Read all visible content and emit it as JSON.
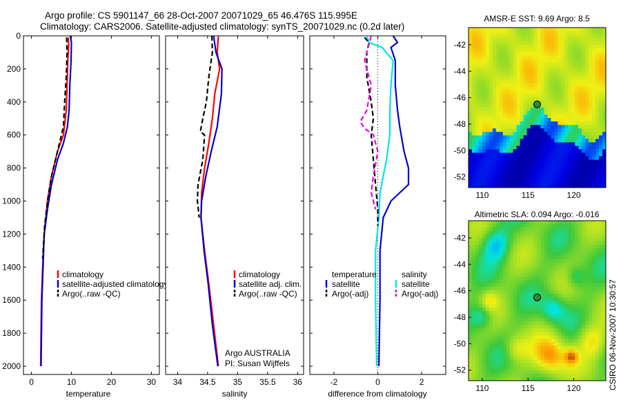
{
  "header": {
    "line1": "Argo profile: CS 5901147_66 28-Oct-2007 20071029_65 46.476S 115.995E",
    "line2": "Climatology: CARS2006. Satellite-adjusted climatology: synTS_20071029.nc (0.2d later)"
  },
  "footer_stamp": "CSIRO 06-Nov-2007 10:30:57",
  "colors": {
    "red": "#ff0000",
    "blue": "#0000cc",
    "black": "#000000",
    "cyan": "#00e5e5",
    "magenta": "#e600e6"
  },
  "chart_data": [
    {
      "type": "line",
      "xlabel": "temperature",
      "ylim": [
        2050,
        0
      ],
      "xlim": [
        -2,
        32
      ],
      "xticks": [
        0,
        10,
        20,
        30
      ],
      "yticks": [
        0,
        200,
        400,
        600,
        800,
        1000,
        1200,
        1400,
        1600,
        1800,
        2000
      ],
      "legend": [
        "climatology",
        "satellite-adjusted climatology",
        "Argo(..raw -QC)"
      ],
      "legend_placement": "lower-left",
      "series": [
        {
          "name": "climatology",
          "color": "red",
          "dash": false,
          "points": [
            [
              9.2,
              10
            ],
            [
              9.3,
              50
            ],
            [
              9.1,
              150
            ],
            [
              8.9,
              300
            ],
            [
              8.7,
              450
            ],
            [
              8.0,
              600
            ],
            [
              6.5,
              700
            ],
            [
              5.0,
              850
            ],
            [
              4.0,
              1000
            ],
            [
              3.2,
              1200
            ],
            [
              2.8,
              1400
            ],
            [
              2.5,
              1600
            ],
            [
              2.4,
              1800
            ],
            [
              2.3,
              2000
            ]
          ]
        },
        {
          "name": "satellite-adjusted climatology",
          "color": "blue",
          "dash": false,
          "points": [
            [
              9.7,
              0
            ],
            [
              10.0,
              40
            ],
            [
              9.9,
              150
            ],
            [
              9.6,
              300
            ],
            [
              9.4,
              450
            ],
            [
              9.0,
              550
            ],
            [
              8.0,
              650
            ],
            [
              6.5,
              750
            ],
            [
              5.0,
              900
            ],
            [
              4.0,
              1050
            ],
            [
              3.2,
              1200
            ],
            [
              2.9,
              1400
            ],
            [
              2.6,
              1600
            ],
            [
              2.5,
              1800
            ],
            [
              2.4,
              2000
            ]
          ]
        },
        {
          "name": "Argo(..raw -QC)",
          "color": "black",
          "dash": true,
          "points": [
            [
              8.8,
              10
            ],
            [
              8.9,
              100
            ],
            [
              8.7,
              250
            ],
            [
              8.3,
              400
            ],
            [
              8.0,
              550
            ],
            [
              6.5,
              700
            ],
            [
              5.0,
              850
            ],
            [
              4.0,
              1000
            ],
            [
              3.3,
              1150
            ],
            [
              2.8,
              1350
            ]
          ]
        }
      ]
    },
    {
      "type": "line",
      "xlabel": "salinity",
      "ylim": [
        2050,
        0
      ],
      "xlim": [
        33.8,
        36.1
      ],
      "xticks": [
        34,
        34.5,
        35,
        35.5,
        36
      ],
      "legend": [
        "climatology",
        "satellite adj. clim.",
        "Argo(..raw -QC)"
      ],
      "legend_placement": "lower-right",
      "annotation": [
        "Argo AUSTRALIA",
        "PI: Susan Wijffels"
      ],
      "series": [
        {
          "name": "climatology",
          "color": "red",
          "dash": false,
          "points": [
            [
              34.68,
              0
            ],
            [
              34.66,
              100
            ],
            [
              34.7,
              200
            ],
            [
              34.62,
              350
            ],
            [
              34.58,
              500
            ],
            [
              34.52,
              650
            ],
            [
              34.45,
              800
            ],
            [
              34.4,
              950
            ],
            [
              34.39,
              1100
            ],
            [
              34.45,
              1300
            ],
            [
              34.52,
              1500
            ],
            [
              34.6,
              1750
            ],
            [
              34.68,
              2000
            ]
          ]
        },
        {
          "name": "satellite adj. clim.",
          "color": "blue",
          "dash": false,
          "points": [
            [
              34.6,
              0
            ],
            [
              34.64,
              100
            ],
            [
              34.74,
              200
            ],
            [
              34.73,
              350
            ],
            [
              34.66,
              550
            ],
            [
              34.56,
              700
            ],
            [
              34.47,
              850
            ],
            [
              34.4,
              1000
            ],
            [
              34.39,
              1100
            ],
            [
              34.44,
              1300
            ],
            [
              34.51,
              1500
            ],
            [
              34.58,
              1750
            ],
            [
              34.67,
              2000
            ]
          ]
        },
        {
          "name": "Argo(..raw -QC)",
          "color": "black",
          "dash": true,
          "points": [
            [
              34.57,
              0
            ],
            [
              34.58,
              100
            ],
            [
              34.52,
              250
            ],
            [
              34.48,
              400
            ],
            [
              34.42,
              500
            ],
            [
              34.38,
              580
            ],
            [
              34.45,
              600
            ],
            [
              34.42,
              750
            ],
            [
              34.34,
              900
            ],
            [
              34.33,
              1000
            ],
            [
              34.36,
              1100
            ]
          ]
        }
      ]
    },
    {
      "type": "line",
      "xlabel": "difference from climatology",
      "ylim": [
        2050,
        0
      ],
      "xlim": [
        -3.1,
        3.1
      ],
      "xticks": [
        -2,
        0,
        2
      ],
      "legend": [
        "temperature",
        "satellite",
        "Argo(-adj)",
        "salinity",
        "satellite",
        "Argo(-adj)"
      ],
      "legend_placement": "lower-center",
      "series": [
        {
          "name": "satellite",
          "group": "temperature",
          "color": "blue",
          "dash": false,
          "points": [
            [
              0.7,
              0
            ],
            [
              0.9,
              40
            ],
            [
              0.6,
              70
            ],
            [
              0.8,
              150
            ],
            [
              0.8,
              300
            ],
            [
              0.9,
              450
            ],
            [
              1.0,
              550
            ],
            [
              1.2,
              700
            ],
            [
              1.4,
              800
            ],
            [
              1.4,
              900
            ],
            [
              1.0,
              950
            ],
            [
              0.6,
              1000
            ],
            [
              0.25,
              1100
            ],
            [
              0.1,
              1300
            ],
            [
              0.1,
              1600
            ],
            [
              0.05,
              2000
            ]
          ]
        },
        {
          "name": "satellite",
          "group": "salinity",
          "color": "cyan",
          "dash": false,
          "points": [
            [
              -0.5,
              0
            ],
            [
              -0.4,
              40
            ],
            [
              0.2,
              70
            ],
            [
              0.7,
              150
            ],
            [
              0.6,
              300
            ],
            [
              0.55,
              450
            ],
            [
              0.55,
              600
            ],
            [
              0.4,
              750
            ],
            [
              0.25,
              850
            ],
            [
              0.1,
              950
            ],
            [
              0.05,
              1100
            ],
            [
              -0.1,
              1300
            ],
            [
              -0.1,
              1600
            ],
            [
              -0.05,
              2000
            ]
          ]
        },
        {
          "name": "Argo(-adj)",
          "group": "temperature",
          "color": "black",
          "dash": true,
          "points": [
            [
              -0.6,
              10
            ],
            [
              -0.4,
              40
            ],
            [
              -0.5,
              100
            ],
            [
              -0.5,
              250
            ],
            [
              -0.3,
              400
            ],
            [
              -0.2,
              500
            ],
            [
              -0.3,
              600
            ],
            [
              -0.2,
              750
            ],
            [
              -0.1,
              900
            ],
            [
              0.0,
              1050
            ],
            [
              0.0,
              1150
            ]
          ]
        },
        {
          "name": "Argo(-adj)",
          "group": "salinity",
          "color": "magenta",
          "dash": true,
          "points": [
            [
              -0.3,
              0
            ],
            [
              -0.4,
              50
            ],
            [
              -0.6,
              150
            ],
            [
              -0.3,
              300
            ],
            [
              -0.5,
              450
            ],
            [
              -0.8,
              520
            ],
            [
              -0.6,
              560
            ],
            [
              -0.2,
              600
            ],
            [
              0.0,
              700
            ],
            [
              -0.2,
              850
            ],
            [
              -0.3,
              950
            ],
            [
              -0.1,
              1050
            ]
          ]
        }
      ]
    },
    {
      "type": "heatmap",
      "title": "AMSR-E SST: 9.69 Argo: 8.5",
      "xticks": [
        110,
        115,
        120
      ],
      "yticks": [
        -42,
        -44,
        -46,
        -48,
        -50,
        -52
      ],
      "xlim": [
        108.5,
        123.5
      ],
      "ylim": [
        -52.8,
        -40.7
      ],
      "marker": {
        "lon": 116.0,
        "lat": -46.5
      }
    },
    {
      "type": "heatmap",
      "title": "Altimetric SLA: 0.094 Argo: -0.016",
      "xticks": [
        110,
        115,
        120
      ],
      "yticks": [
        -42,
        -44,
        -46,
        -48,
        -50,
        -52
      ],
      "xlim": [
        108.5,
        123.5
      ],
      "ylim": [
        -52.8,
        -40.7
      ],
      "marker": {
        "lon": 116.0,
        "lat": -46.5
      }
    }
  ]
}
